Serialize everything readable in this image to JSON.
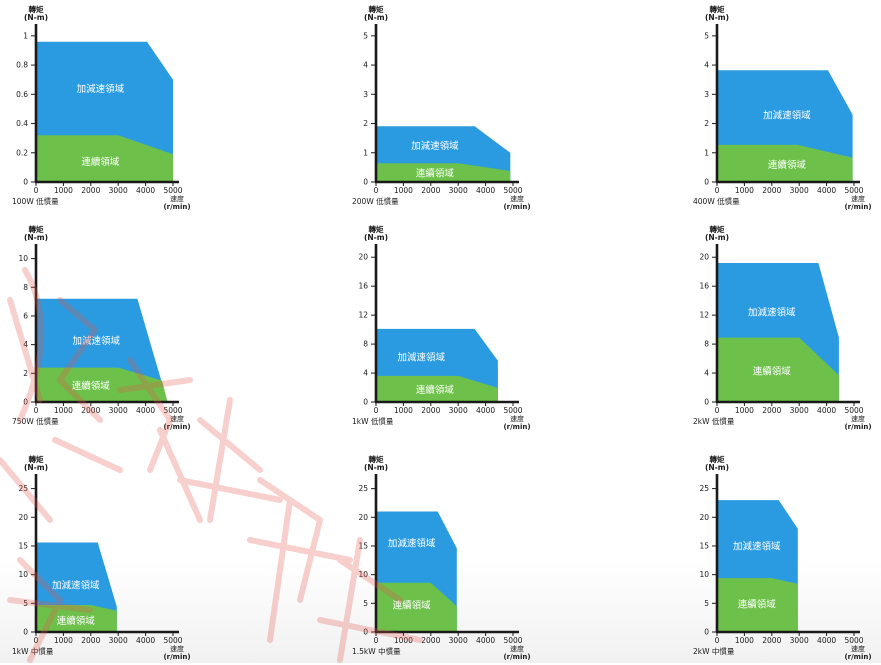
{
  "colors": {
    "accel_zone": "#2a9be0",
    "continuous_zone": "#6dc04a",
    "axis": "#1a1a1a",
    "text": "#1a1a1a",
    "watermark": "#e4574c"
  },
  "chart_data": [
    {
      "type": "area",
      "ylabel": "轉矩\n(N-m)",
      "xlabel": "速度\n(r/min)",
      "motor_label": "100W 低慣量",
      "xticks": [
        0,
        1000,
        2000,
        3000,
        4000,
        5000
      ],
      "yticks": [
        0,
        0.2,
        0.4,
        0.6,
        0.8,
        1
      ],
      "xlim": [
        0,
        5000
      ],
      "ylim": [
        0,
        1.04
      ],
      "series": [
        {
          "name": "加減速領域",
          "x": [
            0,
            4050,
            5000,
            5000,
            0
          ],
          "y": [
            0.96,
            0.96,
            0.7,
            0,
            0
          ]
        },
        {
          "name": "連續領域",
          "x": [
            0,
            3000,
            5000,
            5000,
            0
          ],
          "y": [
            0.32,
            0.32,
            0.19,
            0,
            0
          ]
        }
      ],
      "zone_labels": [
        {
          "text": "加減速領域",
          "x": 2350,
          "y": 0.64
        },
        {
          "text": "連續領域",
          "x": 2350,
          "y": 0.14
        }
      ]
    },
    {
      "type": "area",
      "ylabel": "轉矩\n(N-m)",
      "xlabel": "速度\n(r/min)",
      "motor_label": "200W 低慣量",
      "xticks": [
        0,
        1000,
        2000,
        3000,
        4000,
        5000
      ],
      "yticks": [
        0,
        1,
        2,
        3,
        4,
        5
      ],
      "xlim": [
        0,
        5000
      ],
      "ylim": [
        0,
        5.2
      ],
      "series": [
        {
          "name": "加減速領域",
          "x": [
            0,
            3600,
            4900,
            4900,
            0
          ],
          "y": [
            1.91,
            1.91,
            1.0,
            0,
            0
          ]
        },
        {
          "name": "連續領域",
          "x": [
            0,
            3000,
            4900,
            4900,
            0
          ],
          "y": [
            0.64,
            0.64,
            0.38,
            0,
            0
          ]
        }
      ],
      "zone_labels": [
        {
          "text": "加減速領域",
          "x": 2150,
          "y": 1.25
        },
        {
          "text": "連續領域",
          "x": 2150,
          "y": 0.3
        }
      ]
    },
    {
      "type": "area",
      "ylabel": "轉矩\n(N-m)",
      "xlabel": "速度\n(r/min)",
      "motor_label": "400W 低慣量",
      "xticks": [
        0,
        1000,
        2000,
        3000,
        4000,
        5000
      ],
      "yticks": [
        0,
        1,
        2,
        3,
        4,
        5
      ],
      "xlim": [
        0,
        5000
      ],
      "ylim": [
        0,
        5.2
      ],
      "series": [
        {
          "name": "加減速領域",
          "x": [
            0,
            4050,
            4950,
            4950,
            0
          ],
          "y": [
            3.82,
            3.82,
            2.3,
            0,
            0
          ]
        },
        {
          "name": "連續領域",
          "x": [
            0,
            2950,
            4950,
            4950,
            0
          ],
          "y": [
            1.27,
            1.27,
            0.83,
            0,
            0
          ]
        }
      ],
      "zone_labels": [
        {
          "text": "加減速領域",
          "x": 2550,
          "y": 2.3
        },
        {
          "text": "連續領域",
          "x": 2550,
          "y": 0.6
        }
      ]
    },
    {
      "type": "area",
      "ylabel": "轉矩\n(N-m)",
      "xlabel": "速度\n(r/min)",
      "motor_label": "750W 低慣量",
      "xticks": [
        0,
        1000,
        2000,
        3000,
        4000,
        5000
      ],
      "yticks": [
        0,
        2,
        4,
        6,
        8,
        10
      ],
      "xlim": [
        0,
        5000
      ],
      "ylim": [
        0,
        10.6
      ],
      "series": [
        {
          "name": "加減速領域",
          "x": [
            0,
            3700,
            4800,
            4800,
            0
          ],
          "y": [
            7.2,
            7.2,
            0,
            0,
            0
          ]
        },
        {
          "name": "連續領域",
          "x": [
            0,
            3000,
            4600,
            4800,
            0
          ],
          "y": [
            2.4,
            2.4,
            1.5,
            0,
            0
          ]
        }
      ],
      "zone_labels": [
        {
          "text": "加減速領域",
          "x": 2200,
          "y": 4.3
        },
        {
          "text": "連續領域",
          "x": 2000,
          "y": 1.15
        }
      ]
    },
    {
      "type": "area",
      "ylabel": "轉矩\n(N-m)",
      "xlabel": "速度\n(r/min)",
      "motor_label": "1kW 低慣量",
      "xticks": [
        0,
        1000,
        2000,
        3000,
        4000,
        5000
      ],
      "yticks": [
        0,
        4,
        8,
        12,
        16,
        20
      ],
      "xlim": [
        0,
        5000
      ],
      "ylim": [
        0,
        21
      ],
      "series": [
        {
          "name": "加減速領域",
          "x": [
            0,
            3600,
            4450,
            4450,
            0
          ],
          "y": [
            10.1,
            10.1,
            5.7,
            0,
            0
          ]
        },
        {
          "name": "連續領域",
          "x": [
            0,
            3000,
            4450,
            4450,
            0
          ],
          "y": [
            3.6,
            3.6,
            1.95,
            0,
            0
          ]
        }
      ],
      "zone_labels": [
        {
          "text": "加減速領域",
          "x": 1650,
          "y": 6.2
        },
        {
          "text": "連續領域",
          "x": 2150,
          "y": 1.7
        }
      ]
    },
    {
      "type": "area",
      "ylabel": "轉矩\n(N-m)",
      "xlabel": "速度\n(r/min)",
      "motor_label": "2kW 低慣量",
      "xticks": [
        0,
        1000,
        2000,
        3000,
        4000,
        5000
      ],
      "yticks": [
        0,
        4,
        8,
        12,
        16,
        20
      ],
      "xlim": [
        0,
        5000
      ],
      "ylim": [
        0,
        21
      ],
      "series": [
        {
          "name": "加減速領域",
          "x": [
            0,
            3700,
            4450,
            4450,
            0
          ],
          "y": [
            19.2,
            19.2,
            8.9,
            0,
            0
          ]
        },
        {
          "name": "連續領域",
          "x": [
            0,
            3000,
            4450,
            4450,
            0
          ],
          "y": [
            8.9,
            8.9,
            3.7,
            0,
            0
          ]
        }
      ],
      "zone_labels": [
        {
          "text": "加減速領域",
          "x": 2000,
          "y": 12.4
        },
        {
          "text": "連續領域",
          "x": 2000,
          "y": 4.3
        }
      ]
    },
    {
      "type": "area",
      "ylabel": "轉矩\n(N-m)",
      "xlabel": "速度\n(r/min)",
      "motor_label": "1kW 中慣量",
      "xticks": [
        0,
        1000,
        2000,
        3000,
        4000,
        5000
      ],
      "yticks": [
        0,
        5,
        10,
        15,
        20,
        25
      ],
      "xlim": [
        0,
        5000
      ],
      "ylim": [
        0,
        26.5
      ],
      "series": [
        {
          "name": "加減速領域",
          "x": [
            0,
            2250,
            2950,
            2950,
            0
          ],
          "y": [
            15.6,
            15.6,
            4.4,
            0,
            0
          ]
        },
        {
          "name": "連續領域",
          "x": [
            0,
            2000,
            2950,
            2950,
            0
          ],
          "y": [
            4.7,
            4.7,
            3.7,
            0,
            0
          ]
        }
      ],
      "zone_labels": [
        {
          "text": "加減速領域",
          "x": 1450,
          "y": 8.2
        },
        {
          "text": "連續領域",
          "x": 1450,
          "y": 2.0
        }
      ]
    },
    {
      "type": "area",
      "ylabel": "轉矩\n(N-m)",
      "xlabel": "速度\n(r/min)",
      "motor_label": "1.5kW 中慣量",
      "xticks": [
        0,
        1000,
        2000,
        3000,
        4000,
        5000
      ],
      "yticks": [
        0,
        5,
        10,
        15,
        20,
        25
      ],
      "xlim": [
        0,
        5000
      ],
      "ylim": [
        0,
        26.5
      ],
      "series": [
        {
          "name": "加減速領域",
          "x": [
            0,
            2250,
            2950,
            2950,
            0
          ],
          "y": [
            21,
            21,
            14.6,
            0,
            0
          ]
        },
        {
          "name": "連續領域",
          "x": [
            0,
            2000,
            2950,
            2950,
            0
          ],
          "y": [
            8.6,
            8.6,
            4.5,
            0,
            0
          ]
        }
      ],
      "zone_labels": [
        {
          "text": "加減速領域",
          "x": 1300,
          "y": 15.5
        },
        {
          "text": "連續領域",
          "x": 1300,
          "y": 4.7
        }
      ]
    },
    {
      "type": "area",
      "ylabel": "轉矩\n(N-m)",
      "xlabel": "速度\n(r/min)",
      "motor_label": "2kW 中慣量",
      "xticks": [
        0,
        1000,
        2000,
        3000,
        4000,
        5000
      ],
      "yticks": [
        0,
        5,
        10,
        15,
        20,
        25
      ],
      "xlim": [
        0,
        5000
      ],
      "ylim": [
        0,
        26.5
      ],
      "series": [
        {
          "name": "加減速領域",
          "x": [
            0,
            2250,
            2950,
            2950,
            0
          ],
          "y": [
            23,
            23,
            18,
            0,
            0
          ]
        },
        {
          "name": "連續領域",
          "x": [
            0,
            2000,
            2950,
            2950,
            0
          ],
          "y": [
            9.4,
            9.4,
            8.4,
            0,
            0
          ]
        }
      ],
      "zone_labels": [
        {
          "text": "加減速領域",
          "x": 1450,
          "y": 15.0
        },
        {
          "text": "連續領域",
          "x": 1450,
          "y": 4.9
        }
      ]
    }
  ]
}
